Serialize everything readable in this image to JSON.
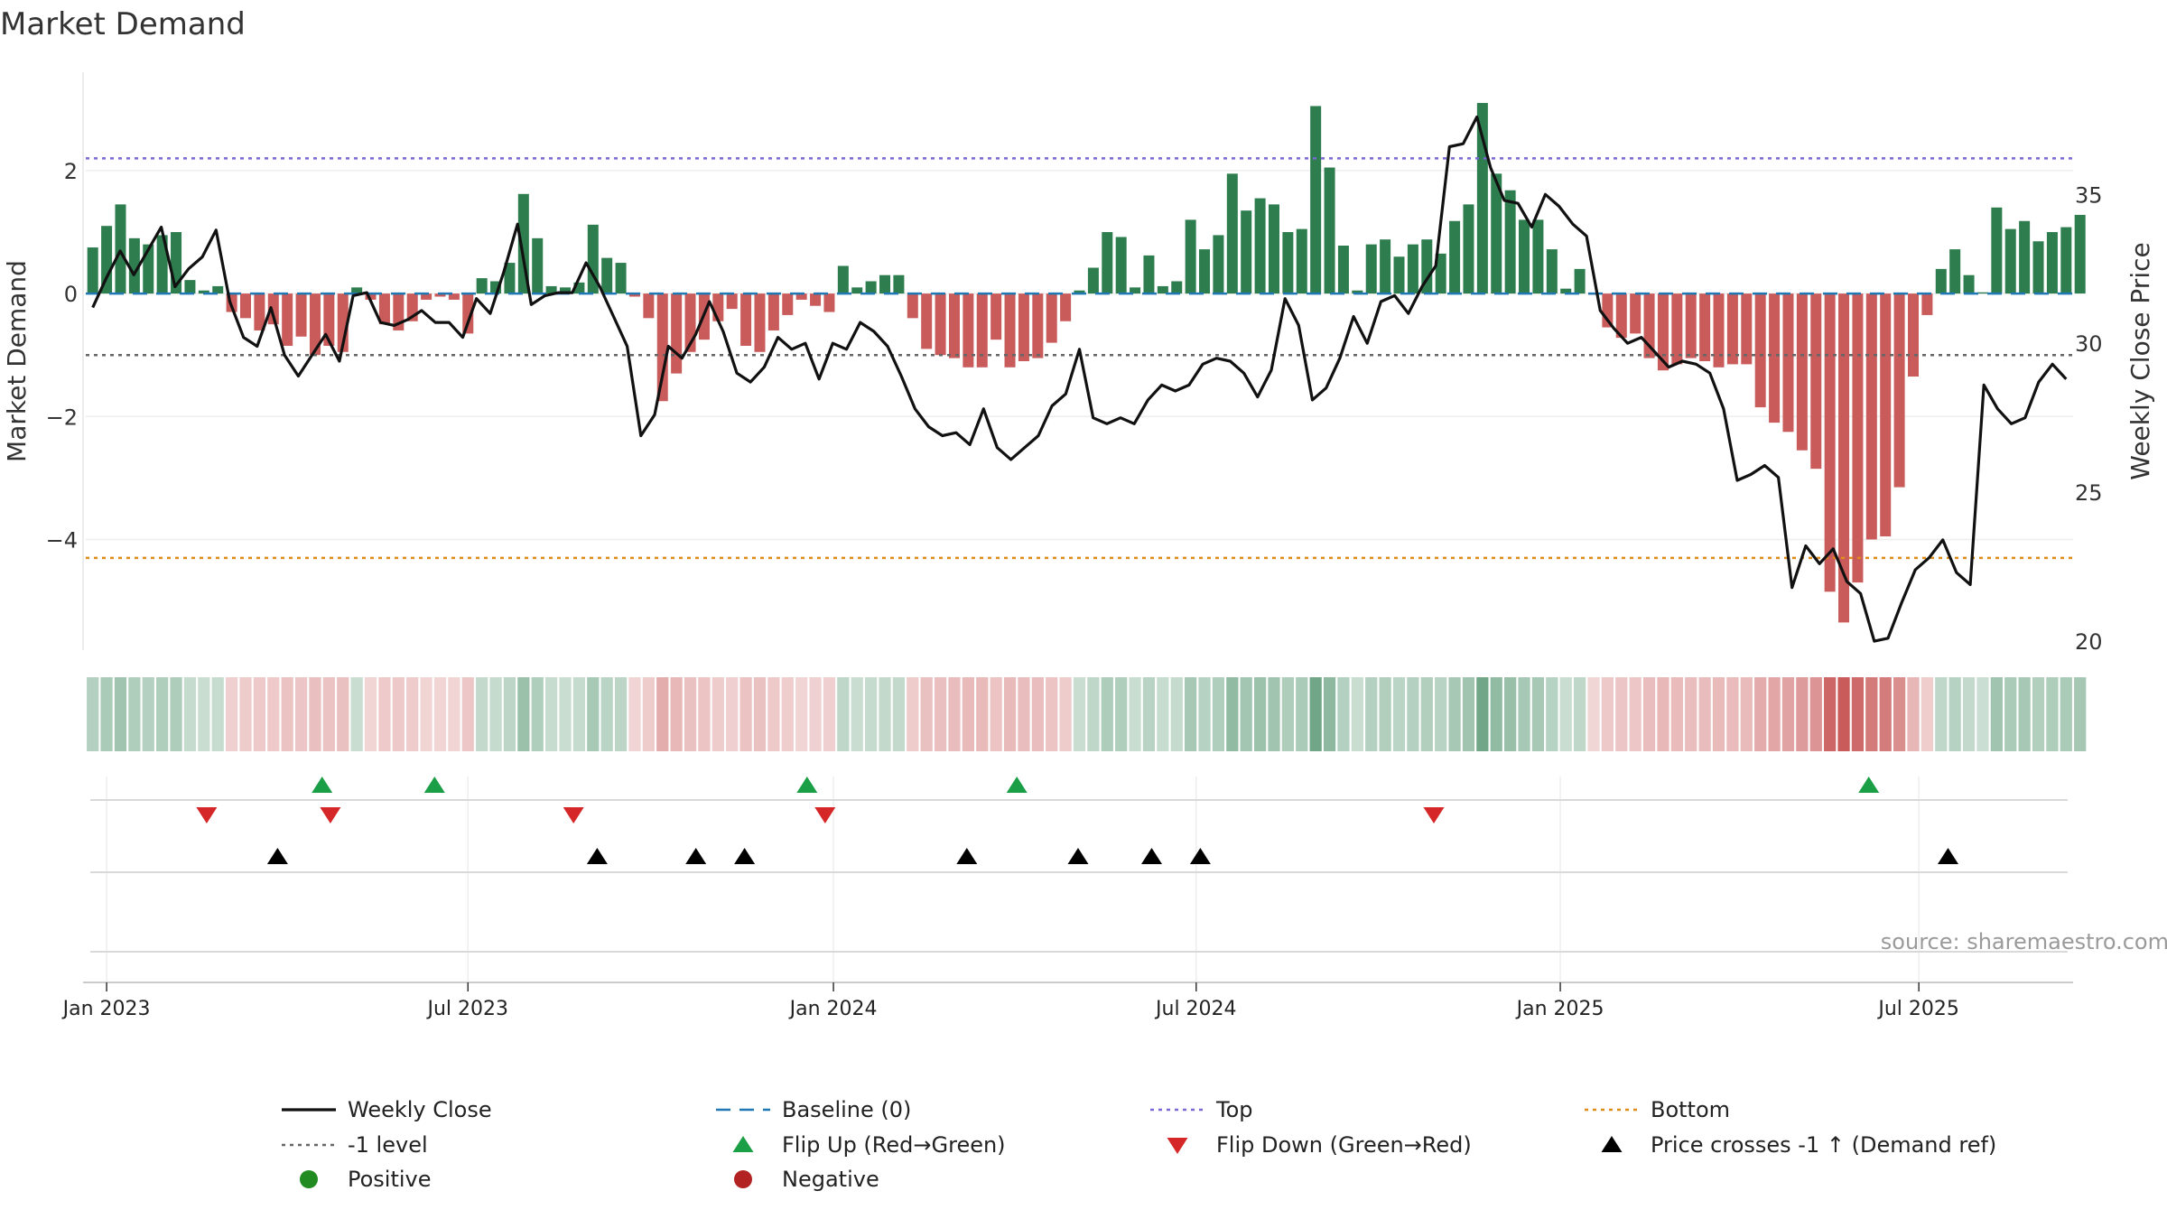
{
  "chart_data": {
    "type": "bar",
    "title": "Market Demand",
    "ylabel": "Market Demand",
    "y2label": "Weekly Close Price",
    "source": "source: sharemaestro.com",
    "ylim": [
      -5.8,
      3.6
    ],
    "y2lim": [
      19.7,
      39.1
    ],
    "yticks": [
      2,
      0,
      -2,
      -4
    ],
    "ytick_labels": [
      "2",
      "0",
      "−2",
      "−4"
    ],
    "y2ticks": [
      35,
      30,
      25,
      20
    ],
    "ytop": 2.2,
    "ybottom": -4.3,
    "yminus1": -1,
    "x_start": "2022-12-26",
    "x_end": "2025-09-22",
    "weeks": 143,
    "xticks": [
      {
        "label": "Jan 2023",
        "week": 1
      },
      {
        "label": "Jul 2023",
        "week": 27
      },
      {
        "label": "Jan 2024",
        "week": 53.3
      },
      {
        "label": "Jul 2024",
        "week": 79.4
      },
      {
        "label": "Jan 2025",
        "week": 105.6
      },
      {
        "label": "Jul 2025",
        "week": 131.4
      }
    ],
    "demand": [
      0.75,
      1.1,
      1.45,
      0.9,
      0.8,
      0.95,
      1.0,
      0.22,
      0.05,
      0.12,
      -0.3,
      -0.4,
      -0.6,
      -0.5,
      -0.85,
      -0.7,
      -1.0,
      -0.85,
      -0.95,
      0.1,
      -0.1,
      -0.5,
      -0.6,
      -0.45,
      -0.1,
      -0.05,
      -0.1,
      -0.65,
      0.25,
      0.2,
      0.5,
      1.62,
      0.9,
      0.12,
      0.1,
      0.18,
      1.12,
      0.58,
      0.5,
      -0.05,
      -0.4,
      -1.75,
      -1.3,
      -0.95,
      -0.75,
      -0.45,
      -0.25,
      -0.85,
      -0.95,
      -0.6,
      -0.35,
      -0.1,
      -0.2,
      -0.3,
      0.45,
      0.1,
      0.2,
      0.3,
      0.3,
      -0.4,
      -0.9,
      -1.0,
      -1.05,
      -1.2,
      -1.2,
      -0.75,
      -1.2,
      -1.1,
      -1.05,
      -0.8,
      -0.45,
      0.05,
      0.42,
      1.0,
      0.92,
      0.1,
      0.62,
      0.12,
      0.2,
      1.2,
      0.72,
      0.95,
      1.95,
      1.35,
      1.55,
      1.45,
      1.0,
      1.05,
      3.05,
      2.05,
      0.78,
      0.05,
      0.8,
      0.88,
      0.6,
      0.8,
      0.88,
      0.65,
      1.18,
      1.45,
      3.1,
      1.95,
      1.68,
      1.2,
      1.2,
      0.72,
      0.08,
      0.4,
      -0.02,
      -0.55,
      -0.72,
      -0.65,
      -1.05,
      -1.25,
      -1.15,
      -1.05,
      -1.1,
      -1.2,
      -1.15,
      -1.15,
      -1.85,
      -2.1,
      -2.25,
      -2.55,
      -2.85,
      -4.85,
      -5.35,
      -4.7,
      -4.0,
      -3.95,
      -3.15,
      -1.35,
      -0.35,
      0.4,
      0.72,
      0.3,
      0.02,
      1.4,
      1.05,
      1.18,
      0.85,
      1.0,
      1.08,
      1.28
    ],
    "close": [
      31.2,
      32.2,
      33.1,
      32.3,
      33.1,
      33.9,
      31.9,
      32.5,
      32.9,
      33.8,
      31.4,
      30.2,
      29.9,
      31.2,
      29.6,
      28.9,
      29.6,
      30.3,
      29.4,
      31.6,
      31.7,
      30.7,
      30.6,
      30.8,
      31.1,
      30.7,
      30.7,
      30.2,
      31.5,
      31.0,
      32.4,
      34.0,
      31.3,
      31.6,
      31.7,
      31.7,
      32.7,
      31.9,
      30.9,
      29.9,
      26.9,
      27.6,
      29.9,
      29.5,
      30.3,
      31.4,
      30.4,
      29.0,
      28.7,
      29.2,
      30.2,
      29.8,
      30.0,
      28.8,
      30.0,
      29.8,
      30.7,
      30.4,
      29.9,
      28.9,
      27.8,
      27.2,
      26.9,
      27.0,
      26.6,
      27.8,
      26.5,
      26.1,
      26.5,
      26.9,
      27.9,
      28.3,
      29.8,
      27.5,
      27.3,
      27.5,
      27.3,
      28.1,
      28.6,
      28.4,
      28.6,
      29.3,
      29.5,
      29.4,
      29.0,
      28.2,
      29.1,
      31.5,
      30.6,
      28.1,
      28.5,
      29.5,
      30.9,
      30.0,
      31.4,
      31.6,
      31.0,
      31.9,
      32.6,
      36.6,
      36.7,
      37.6,
      35.9,
      34.8,
      34.7,
      33.9,
      35.0,
      34.6,
      34.0,
      33.6,
      31.1,
      30.5,
      30.0,
      30.2,
      29.7,
      29.2,
      29.4,
      29.3,
      29.0,
      27.8,
      25.4,
      25.6,
      25.9,
      25.5,
      21.8,
      23.2,
      22.6,
      23.1,
      22.0,
      21.6,
      20.0,
      20.1,
      21.3,
      22.4,
      22.8,
      23.4,
      22.3,
      21.9,
      28.6,
      27.8,
      27.3,
      27.5,
      28.7,
      29.3,
      28.8
    ],
    "colors": {
      "positive_bar": "#2e7d4f",
      "negative_bar": "#c95b5b",
      "price_line": "#111111",
      "baseline": "#1f77b4",
      "top_line": "#7b68d6",
      "bottom_line": "#e08c1a",
      "minus1_line": "#666666",
      "flip_up": "#1a9e46",
      "flip_down": "#d62728",
      "cross": "#000000",
      "positive_dot": "#228b22",
      "negative_dot": "#b22222",
      "source_text": "#9a9a9a"
    },
    "flip_up_weeks": [
      16.5,
      24.6,
      51.4,
      66.5,
      127.8
    ],
    "flip_down_weeks": [
      8.2,
      17.1,
      34.6,
      52.7,
      96.5
    ],
    "cross_weeks": [
      13.3,
      36.3,
      43.4,
      46.9,
      62.9,
      70.9,
      76.2,
      79.7,
      133.5
    ],
    "legend": [
      {
        "label": "Weekly Close",
        "symbol": "line"
      },
      {
        "label": "Baseline (0)",
        "symbol": "dash"
      },
      {
        "label": "Top",
        "symbol": "dot-line-top"
      },
      {
        "label": "Bottom",
        "symbol": "dot-line-bottom"
      },
      {
        "label": "-1 level",
        "symbol": "dot-line-minus1"
      },
      {
        "label": "Flip Up (Red→Green)",
        "symbol": "tri-up-green"
      },
      {
        "label": "Flip Down (Green→Red)",
        "symbol": "tri-down-red"
      },
      {
        "label": "Price crosses -1 ↑ (Demand ref)",
        "symbol": "tri-up-black"
      },
      {
        "label": "Positive",
        "symbol": "dot-green"
      },
      {
        "label": "Negative",
        "symbol": "dot-red"
      }
    ]
  }
}
